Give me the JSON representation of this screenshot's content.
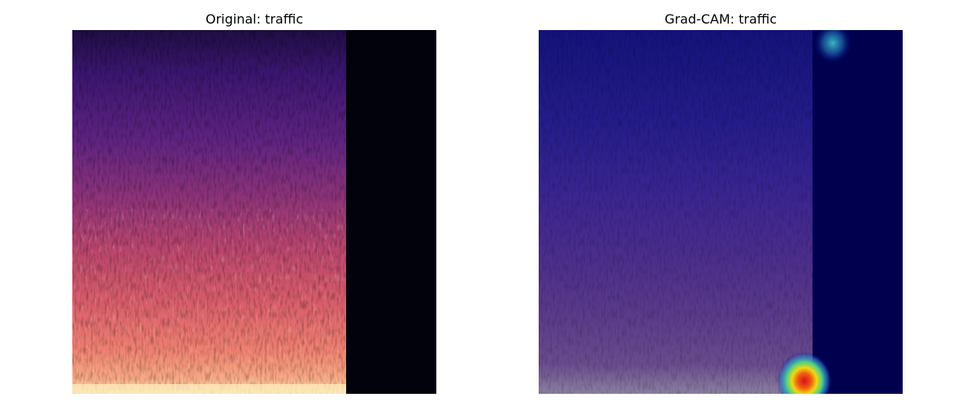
{
  "panels": {
    "original": {
      "title": "Original: traffic"
    },
    "gradcam": {
      "title": "Grad-CAM: traffic"
    }
  },
  "colors": {
    "background": "#ffffff",
    "spectrogram_top": "#2a1158",
    "spectrogram_mid": "#a33e6e",
    "spectrogram_bottom": "#f9d7a0",
    "padding_region": "#02020d",
    "gradcam_tint": "#000060",
    "heat_hot": "#e0261a",
    "heat_warm": "#f5d800",
    "heat_cool": "#3ad0c0"
  }
}
